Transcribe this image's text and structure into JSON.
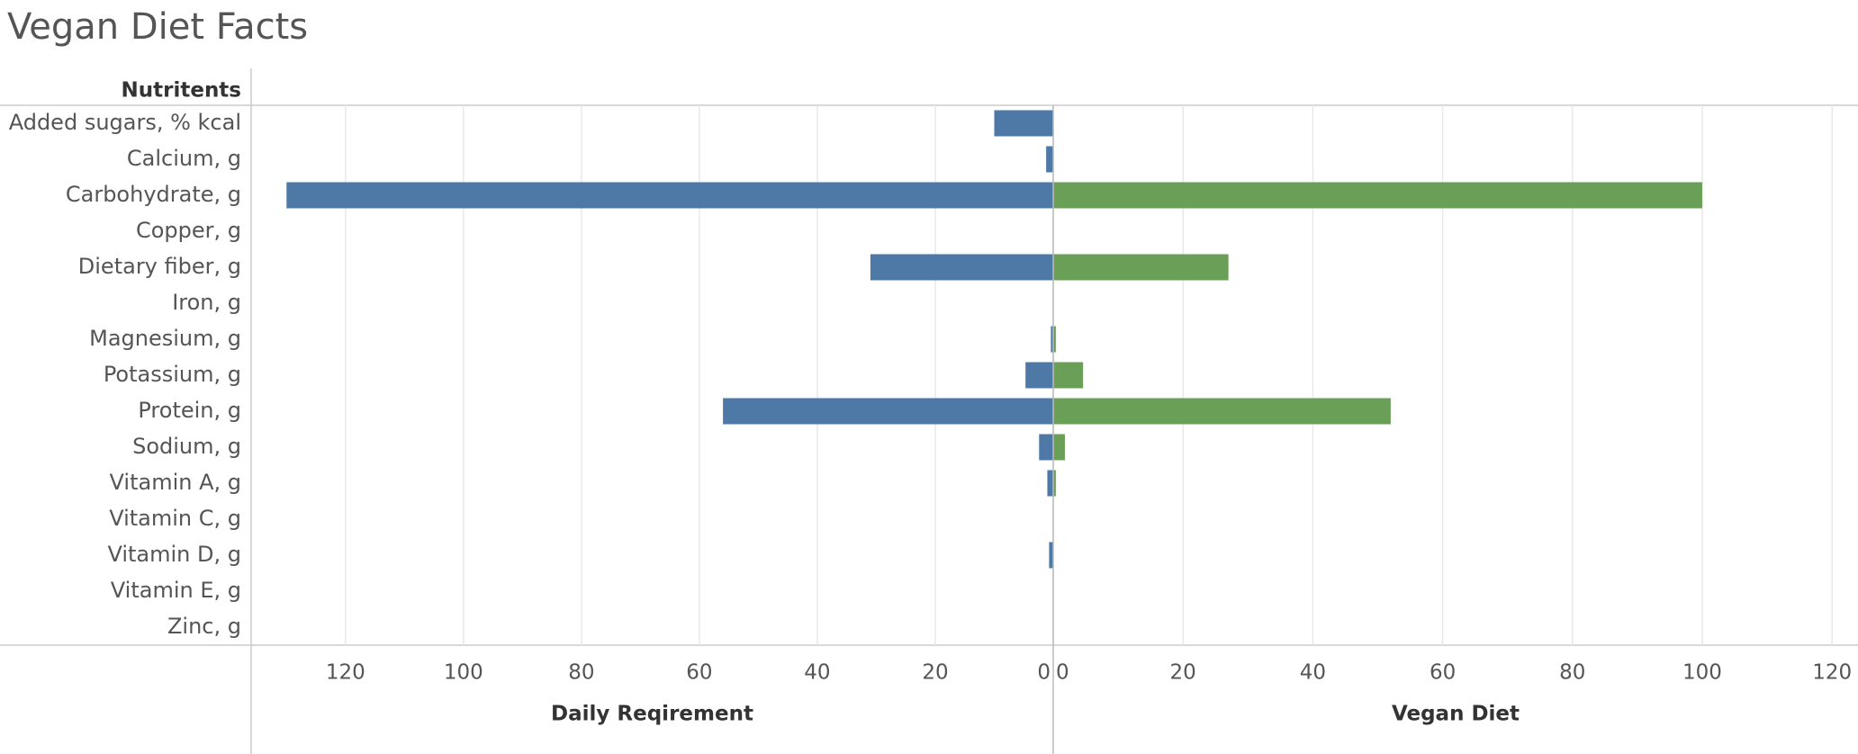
{
  "chart_data": {
    "type": "butterfly-bar",
    "title": "Vegan Diet Facts",
    "row_header": "Nutritents",
    "categories": [
      "Added sugars, % kcal",
      "Calcium, g",
      "Carbohydrate, g",
      "Copper, g",
      "Dietary fiber, g",
      "Iron, g",
      "Magnesium, g",
      "Potassium, g",
      "Protein, g",
      "Sodium, g",
      "Vitamin A, g",
      "Vitamin C, g",
      "Vitamin D, g",
      "Vitamin E, g",
      "Zinc, g"
    ],
    "series": [
      {
        "name": "Daily Reqirement",
        "color": "#4e79a7",
        "values": [
          10,
          1.2,
          130,
          0,
          31,
          0,
          0.4,
          4.7,
          56,
          2.4,
          1,
          0,
          0.7,
          0,
          0
        ],
        "xlim": [
          0,
          136
        ],
        "xticks": [
          0,
          20,
          40,
          60,
          80,
          100,
          120
        ]
      },
      {
        "name": "Vegan Diet",
        "color": "#6a9f58",
        "values": [
          0,
          0,
          100,
          0,
          27,
          0,
          0.4,
          4.6,
          52,
          1.8,
          0.4,
          0,
          0,
          0,
          0
        ],
        "xlim": [
          0,
          124
        ],
        "xticks": [
          0,
          20,
          40,
          60,
          80,
          100,
          120
        ]
      }
    ],
    "grid": true
  }
}
